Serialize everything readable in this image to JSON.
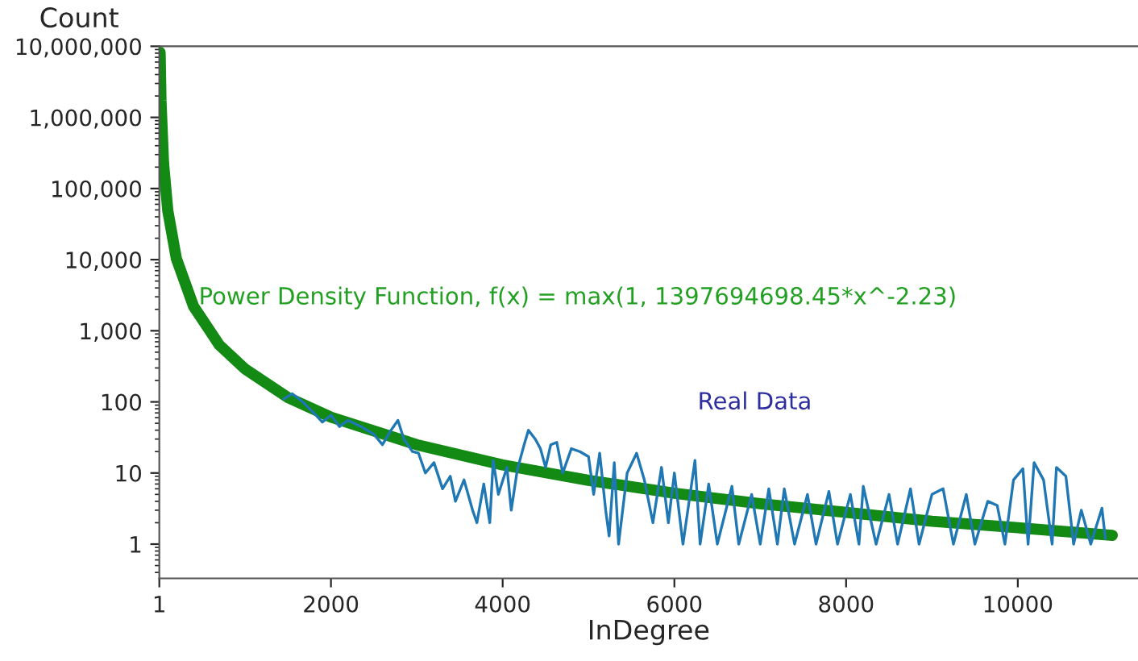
{
  "chart_data": {
    "type": "line",
    "xlabel": "InDegree",
    "ylabel": "Count",
    "log": "y",
    "grid": false,
    "legend": false,
    "marker": "none",
    "line_style": "solid",
    "xlim": [
      1,
      11400
    ],
    "xticks": [
      1,
      2000,
      4000,
      6000,
      8000,
      10000
    ],
    "ylim": [
      0.33,
      10000000
    ],
    "yticks": [
      1,
      10,
      100,
      {
        "value": 1000,
        "label": "1,000"
      },
      {
        "value": 10000,
        "label": "10,000"
      },
      {
        "value": 100000,
        "label": "100,000"
      },
      {
        "value": 1000000,
        "label": "1,000,000"
      },
      {
        "value": 10000000,
        "label": "10,000,000"
      }
    ],
    "annotations": [
      {
        "text": "Power Density Function, f(x) = max(1, 1397694698.45*x^-2.23)",
        "x": 460,
        "y": 2900
      },
      "Real Data"
    ],
    "series": [
      {
        "color": "#1f77b4",
        "x": [
          1450,
          1550,
          1670,
          1800,
          1900,
          2000,
          2100,
          2200,
          2350,
          2500,
          2600,
          2700,
          2780,
          2850,
          2950,
          3020,
          3100,
          3200,
          3300,
          3390,
          3450,
          3550,
          3650,
          3700,
          3780,
          3850,
          3890,
          3950,
          4050,
          4100,
          4170,
          4250,
          4300,
          4380,
          4440,
          4500,
          4560,
          4630,
          4700,
          4800,
          4900,
          5000,
          5060,
          5130,
          5200,
          5240,
          5300,
          5350,
          5450,
          5560,
          5650,
          5750,
          5850,
          5930,
          6000,
          6100,
          6240,
          6300,
          6400,
          6500,
          6670,
          6750,
          6900,
          7000,
          7100,
          7200,
          7280,
          7400,
          7550,
          7650,
          7800,
          7900,
          8050,
          8150,
          8200,
          8350,
          8500,
          8600,
          8750,
          8850,
          9000,
          9130,
          9250,
          9400,
          9500,
          9650,
          9760,
          9850,
          9950,
          10060,
          10120,
          10190,
          10300,
          10400,
          10450,
          10560,
          10650,
          10740,
          10850,
          10980,
          11020
        ],
        "values": [
          110,
          130,
          100,
          70,
          52,
          65,
          45,
          55,
          45,
          35,
          25,
          40,
          55,
          30,
          20,
          19,
          10,
          14,
          6,
          9,
          4,
          8,
          3,
          2,
          7,
          2,
          15,
          5,
          12,
          3,
          11,
          25,
          40,
          30,
          22,
          12,
          25,
          27,
          10,
          22,
          20,
          17,
          5,
          19,
          3,
          1.3,
          14,
          1,
          10,
          19,
          8,
          2,
          12,
          2,
          10,
          1,
          15,
          1,
          7,
          1,
          6.5,
          1,
          5,
          1,
          6,
          1,
          6,
          1,
          5,
          1,
          5.5,
          1,
          5,
          1,
          6.5,
          1,
          5,
          1,
          6,
          1,
          5,
          6,
          1,
          5,
          1,
          4,
          3.5,
          1,
          8,
          11.5,
          1,
          14,
          8,
          1,
          12,
          9,
          1,
          3,
          1,
          3.2,
          1.2
        ]
      },
      {
        "color": "#138a13",
        "x": [
          10,
          20,
          50,
          100,
          200,
          400,
          700,
          1000,
          1500,
          2000,
          3000,
          4000,
          5000,
          6000,
          7000,
          8000,
          9000,
          10000,
          11100
        ],
        "values": [
          8200000,
          1750000,
          227000,
          48500,
          10300,
          2200,
          630,
          290,
          115,
          61,
          25,
          13,
          7.9,
          5.2,
          3.7,
          2.8,
          2.1,
          1.7,
          1.33
        ]
      }
    ]
  }
}
